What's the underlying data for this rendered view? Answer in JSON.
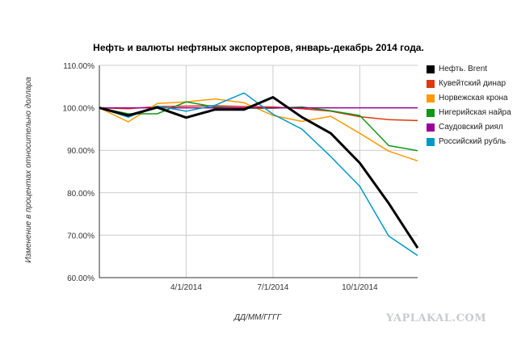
{
  "chart_data": {
    "type": "line",
    "title": "Нефть и валюты нефтяных экспортеров, январь-декабрь 2014 года.",
    "xlabel": "ДД/ММ/ГГГГ",
    "ylabel": "Изменение в процентах относительно доллара",
    "ylim": [
      60,
      110
    ],
    "y_ticks": [
      "60.00%",
      "70.00%",
      "80.00%",
      "90.00%",
      "100.00%",
      "110.00%"
    ],
    "y_tick_values": [
      60,
      70,
      80,
      90,
      100,
      110
    ],
    "x_ticks": [
      "4/1/2014",
      "7/1/2014",
      "10/1/2014"
    ],
    "x_tick_months": [
      3,
      6,
      9
    ],
    "xlim": [
      0,
      11
    ],
    "grid": true,
    "legend_position": "right",
    "months": [
      0,
      1,
      2,
      3,
      4,
      5,
      6,
      7,
      8,
      9,
      10,
      11
    ],
    "series": [
      {
        "name": "Нефть. Brent",
        "color": "#000000",
        "width": 3,
        "values": [
          100,
          98.2,
          100.1,
          97.7,
          99.6,
          99.6,
          102.5,
          97.8,
          94,
          87,
          77.5,
          67
        ]
      },
      {
        "name": "Кувейтский динар",
        "color": "#dc3912",
        "width": 1.5,
        "values": [
          100,
          99.8,
          100.3,
          100.4,
          100.5,
          100.3,
          100.2,
          99.8,
          99.2,
          97.9,
          97.2,
          97
        ]
      },
      {
        "name": "Норвежская крона",
        "color": "#ff9900",
        "width": 1.5,
        "values": [
          100,
          96.7,
          101,
          101.4,
          102.1,
          101.2,
          98.2,
          96.8,
          98,
          94,
          89.8,
          87.5
        ]
      },
      {
        "name": "Нигерийская найра",
        "color": "#109618",
        "width": 1.5,
        "values": [
          100,
          98.6,
          98.6,
          101.4,
          100.2,
          99.9,
          99.9,
          100.2,
          99.3,
          98.2,
          91.1,
          89.9
        ]
      },
      {
        "name": "Саудовский риял",
        "color": "#990099",
        "width": 1.5,
        "values": [
          100,
          100,
          100,
          100,
          100,
          100,
          100,
          100,
          100,
          100,
          100,
          100
        ]
      },
      {
        "name": "Российский рубль",
        "color": "#0099c6",
        "width": 1.5,
        "values": [
          100,
          97.8,
          100.4,
          99.2,
          100.6,
          103.5,
          98.5,
          95,
          88.5,
          81.5,
          69.8,
          65.2
        ]
      }
    ]
  },
  "watermark": "YAPLAKAL.COM"
}
